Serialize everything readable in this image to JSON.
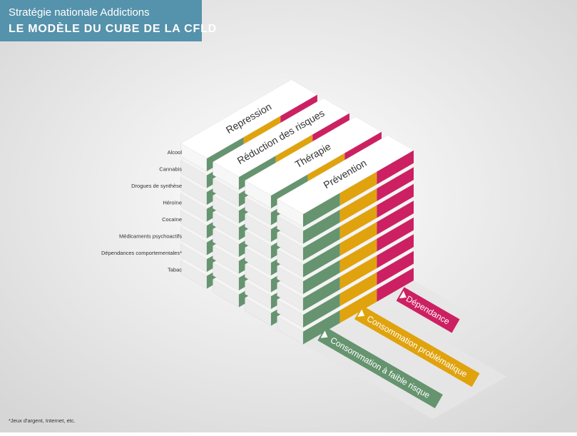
{
  "header": {
    "subtitle": "Stratégie nationale Addictions",
    "title": "LE MODÈLE DU CUBE DE LA CFLD"
  },
  "substances": [
    "Alcool",
    "Cannabis",
    "Drogues de synthèse",
    "Héroïne",
    "Cocaïne",
    "Médicaments psychoactifs",
    "Dépendances comportementales*",
    "Tabac"
  ],
  "pillars": [
    "Repression",
    "Réduction des risques",
    "Thérapie",
    "Prévention"
  ],
  "consumption": [
    "Consommation à faible risque",
    "Consommation problématique",
    "Dépendance"
  ],
  "footnote": "*Jeux d'argent, Internet, etc."
}
